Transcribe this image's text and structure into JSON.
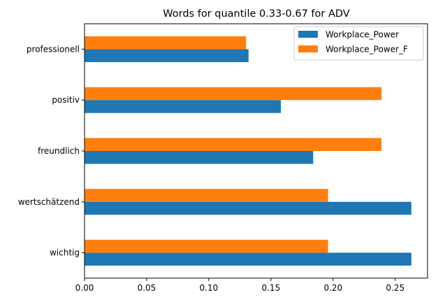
{
  "chart_data": {
    "type": "bar",
    "orientation": "horizontal",
    "title": "Words for quantile 0.33-0.67 for ADV",
    "xlabel": "",
    "ylabel": "",
    "categories": [
      "wichtig",
      "wertschätzend",
      "freundlich",
      "positiv",
      "professionell"
    ],
    "series": [
      {
        "name": "Workplace_Power",
        "color": "#1f77b4",
        "values": [
          0.263,
          0.263,
          0.184,
          0.158,
          0.132
        ]
      },
      {
        "name": "Workplace_Power_F",
        "color": "#ff7f0e",
        "values": [
          0.196,
          0.196,
          0.239,
          0.239,
          0.13
        ]
      }
    ],
    "xlim": [
      0,
      0.276
    ],
    "xticks": [
      0.0,
      0.05,
      0.1,
      0.15,
      0.2,
      0.25
    ],
    "xtick_labels": [
      "0.00",
      "0.05",
      "0.10",
      "0.15",
      "0.20",
      "0.25"
    ],
    "legend_position": "top-right",
    "grid": false
  }
}
